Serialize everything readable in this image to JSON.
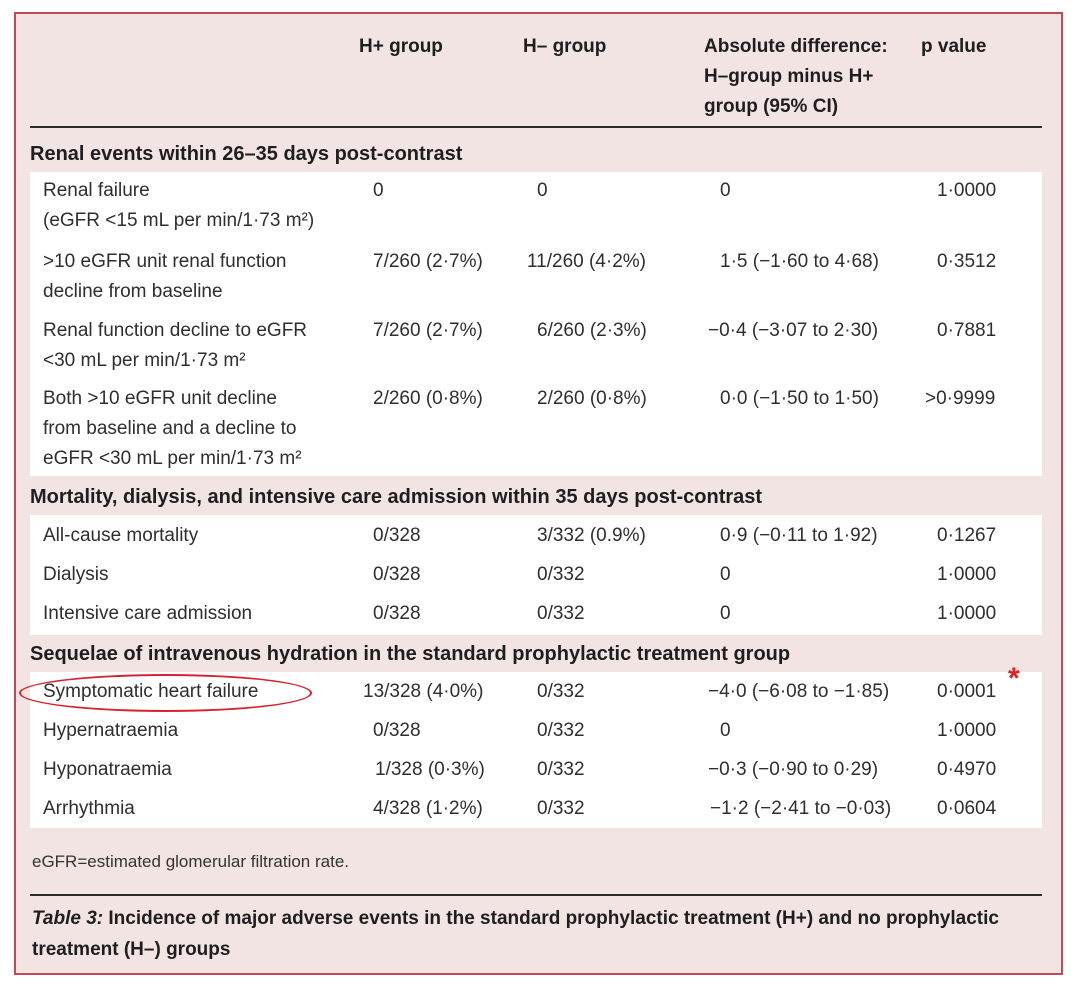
{
  "header": {
    "col_h_plus": "H+ group",
    "col_h_minus": "H– group",
    "col_diff_line1": "Absolute difference:",
    "col_diff_line2": "H–group minus H+",
    "col_diff_line3": "group (95% CI)",
    "col_p": "p value"
  },
  "sections": [
    {
      "title": "Renal events within 26–35 days post-contrast",
      "rows": [
        {
          "label": [
            "Renal failure",
            "(eGFR <15 mL per min/1·73 m²)"
          ],
          "h_plus": "0",
          "h_minus": "0",
          "diff": "0",
          "p": "1·0000"
        },
        {
          "label": [
            ">10 eGFR unit renal function",
            "decline from baseline"
          ],
          "h_plus": "7/260 (2·7%)",
          "h_minus": "11/260 (4·2%)",
          "diff": "1·5 (−1·60 to 4·68)",
          "p": "0·3512"
        },
        {
          "label": [
            "Renal function decline to eGFR",
            "<30 mL per min/1·73 m²"
          ],
          "h_plus": "7/260 (2·7%)",
          "h_minus": "6/260 (2·3%)",
          "diff": "−0·4 (−3·07 to 2·30)",
          "p": "0·7881"
        },
        {
          "label": [
            "Both >10 eGFR unit decline",
            "from baseline and a decline to",
            "eGFR <30 mL per min/1·73 m²"
          ],
          "h_plus": "2/260 (0·8%)",
          "h_minus": "2/260 (0·8%)",
          "diff": "0·0 (−1·50 to 1·50)",
          "p": ">0·9999"
        }
      ]
    },
    {
      "title": "Mortality, dialysis, and intensive care admission within 35 days post-contrast",
      "rows": [
        {
          "label": [
            "All-cause mortality"
          ],
          "h_plus": "0/328",
          "h_minus": "3/332 (0.9%)",
          "diff": "0·9 (−0·11 to 1·92)",
          "p": "0·1267"
        },
        {
          "label": [
            "Dialysis"
          ],
          "h_plus": "0/328",
          "h_minus": "0/332",
          "diff": "0",
          "p": "1·0000"
        },
        {
          "label": [
            "Intensive care admission"
          ],
          "h_plus": "0/328",
          "h_minus": "0/332",
          "diff": "0",
          "p": "1·0000"
        }
      ]
    },
    {
      "title": "Sequelae of intravenous hydration in the standard prophylactic treatment group",
      "rows": [
        {
          "label": [
            "Symptomatic heart failure"
          ],
          "h_plus": "13/328 (4·0%)",
          "h_minus": "0/332",
          "diff": "−4·0 (−6·08 to −1·85)",
          "p": "0·0001"
        },
        {
          "label": [
            "Hypernatraemia"
          ],
          "h_plus": "0/328",
          "h_minus": "0/332",
          "diff": "0",
          "p": "1·0000"
        },
        {
          "label": [
            "Hyponatraemia"
          ],
          "h_plus": "1/328 (0·3%)",
          "h_minus": "0/332",
          "diff": "−0·3 (−0·90 to 0·29)",
          "p": "0·4970"
        },
        {
          "label": [
            "Arrhythmia"
          ],
          "h_plus": "4/328 (1·2%)",
          "h_minus": "0/332",
          "diff": "−1·2 (−2·41 to −0·03)",
          "p": "0·0604"
        }
      ]
    }
  ],
  "footnote": "eGFR=estimated glomerular filtration rate.",
  "caption": {
    "label": "Table 3:",
    "text": " Incidence of major adverse events in the standard prophylactic treatment (H+) and no prophylactic treatment (H–) groups"
  },
  "annotation": {
    "asterisk": "*",
    "highlight_color": "#d6222f"
  }
}
